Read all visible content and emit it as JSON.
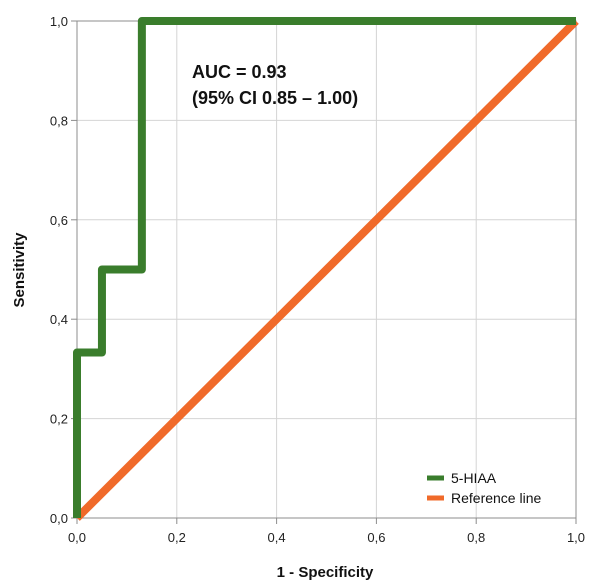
{
  "chart_data": {
    "type": "line",
    "title": "",
    "xlabel": "1 - Specificity",
    "ylabel": "Sensitivity",
    "xlim": [
      0,
      1
    ],
    "ylim": [
      0,
      1
    ],
    "x_ticks": [
      "0,0",
      "0,2",
      "0,4",
      "0,6",
      "0,8",
      "1,0"
    ],
    "y_ticks": [
      "0,0",
      "0,2",
      "0,4",
      "0,6",
      "0,8",
      "1,0"
    ],
    "grid": true,
    "legend_position": "bottom-right",
    "annotations": [
      "AUC = 0.93",
      "(95% CI 0.85 – 1.00)"
    ],
    "series": [
      {
        "name": "5-HIAA",
        "color": "#3a7d2c",
        "x": [
          0,
          0,
          0.05,
          0.05,
          0.13,
          0.13,
          1.0
        ],
        "y": [
          0,
          0.333,
          0.333,
          0.5,
          0.5,
          1.0,
          1.0
        ]
      },
      {
        "name": "Reference line",
        "color": "#f06a2a",
        "x": [
          0,
          1
        ],
        "y": [
          0,
          1
        ]
      }
    ]
  }
}
